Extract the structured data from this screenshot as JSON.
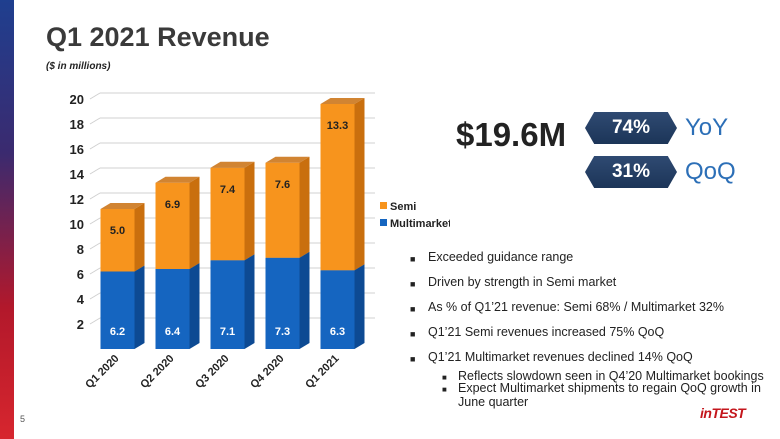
{
  "slide": {
    "title": "Q1 2021 Revenue",
    "subtitle": "($ in millions)",
    "page_number": "5",
    "logo_text": "inTEST"
  },
  "highlights": {
    "total": "$19.6M",
    "metrics": [
      {
        "value": "74%",
        "label": "YoY"
      },
      {
        "value": "31%",
        "label": "QoQ"
      }
    ]
  },
  "bullets": [
    {
      "text": "Exceeded guidance range",
      "sub": []
    },
    {
      "text": "Driven by strength in Semi market",
      "sub": []
    },
    {
      "text": "As % of Q1’21 revenue: Semi 68% / Multimarket 32%",
      "sub": []
    },
    {
      "text": "Q1’21 Semi revenues increased 75% QoQ",
      "sub": []
    },
    {
      "text": "Q1’21 Multimarket revenues declined 14% QoQ",
      "sub": [
        "Reflects slowdown seen in Q4’20 Multimarket bookings",
        "Expect Multimarket shipments to regain QoQ growth in June quarter"
      ]
    }
  ],
  "colors": {
    "semi": "#f7941d",
    "semi_side": "#c96f0e",
    "multimarket": "#1565c0",
    "multimarket_side": "#0d4a93",
    "accent_text": "#2c6fb7"
  },
  "chart_data": {
    "type": "bar",
    "stacked": true,
    "categories": [
      "Q1 2020",
      "Q2 2020",
      "Q3 2020",
      "Q4 2020",
      "Q1 2021"
    ],
    "series": [
      {
        "name": "Multimarket",
        "values": [
          6.2,
          6.4,
          7.1,
          7.3,
          6.3
        ]
      },
      {
        "name": "Semi",
        "values": [
          5.0,
          6.9,
          7.4,
          7.6,
          13.3
        ]
      }
    ],
    "yticks": [
      2,
      4,
      6,
      8,
      10,
      12,
      14,
      16,
      18,
      20
    ],
    "ylim": [
      0,
      20
    ],
    "grid": true,
    "legend_position": "right"
  }
}
